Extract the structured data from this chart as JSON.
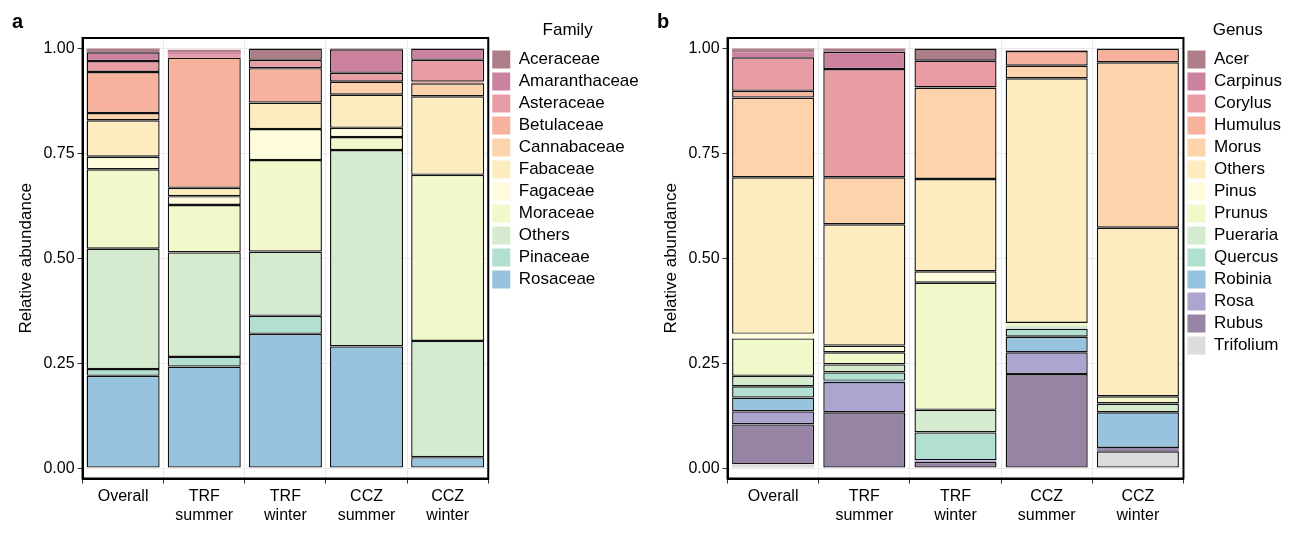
{
  "chart_data": [
    {
      "type": "bar",
      "title": "a",
      "ylabel": "Relative abundance",
      "legend_title": "Family",
      "legend": "right",
      "stacked": true,
      "grid": true,
      "categories": [
        "Overall",
        "TRF summer",
        "TRF winter",
        "CCZ summer",
        "CCZ winter"
      ],
      "ylim": [
        -0.025,
        1.025
      ],
      "yticks": [
        {
          "value": 0,
          "label": "0.00"
        },
        {
          "value": 0.25,
          "label": "0.25"
        },
        {
          "value": 0.5,
          "label": "0.50"
        },
        {
          "value": 0.75,
          "label": "0.75"
        },
        {
          "value": 1,
          "label": "1.00"
        }
      ],
      "series": [
        {
          "name": "Rosaceae",
          "color": "#98c3de",
          "values": [
            0.22,
            0.242,
            0.32,
            0.29,
            0.026
          ]
        },
        {
          "name": "Pinaceae",
          "color": "#b2e0d0",
          "values": [
            0.016,
            0.023,
            0.043,
            0,
            0
          ]
        },
        {
          "name": "Others",
          "color": "#d5ebd0",
          "values": [
            0.287,
            0.249,
            0.153,
            0.468,
            0.277
          ]
        },
        {
          "name": "Moraceae",
          "color": "#f1f8c9",
          "values": [
            0.189,
            0.113,
            0.218,
            0.031,
            0.396
          ]
        },
        {
          "name": "Fagaceae",
          "color": "#fefcdc",
          "values": [
            0.03,
            0.021,
            0.074,
            0.022,
            0
          ]
        },
        {
          "name": "Fabaceae",
          "color": "#fdecc0",
          "values": [
            0.087,
            0.02,
            0.063,
            0.079,
            0.187
          ]
        },
        {
          "name": "Cannabaceae",
          "color": "#fdd3ab",
          "values": [
            0.017,
            null,
            0,
            0.031,
            0.031
          ]
        },
        {
          "name": "Betulaceae",
          "color": "#f7b29e",
          "values": [
            0.098,
            0.31,
            0.082,
            0,
            0.004
          ]
        },
        {
          "name": "Asteraceae",
          "color": "#e89da5",
          "values": [
            0.026,
            0.007,
            0.02,
            0.021,
            0.052
          ]
        },
        {
          "name": "Amaranthaceae",
          "color": "#cc829f",
          "values": [
            0.021,
            0.006,
            0,
            0.056,
            0.027
          ]
        },
        {
          "name": "Aceraceae",
          "color": "#ae7e88",
          "values": [
            0.009,
            0.006,
            0.027,
            0.002,
            0
          ]
        }
      ]
    },
    {
      "type": "bar",
      "title": "b",
      "ylabel": "Relative abundance",
      "legend_title": "Genus",
      "legend": "right",
      "stacked": true,
      "grid": true,
      "categories": [
        "Overall",
        "TRF summer",
        "TRF winter",
        "CCZ summer",
        "CCZ winter"
      ],
      "ylim": [
        -0.025,
        1.025
      ],
      "yticks": [
        {
          "value": 0,
          "label": "0.00"
        },
        {
          "value": 0.25,
          "label": "0.25"
        },
        {
          "value": 0.5,
          "label": "0.50"
        },
        {
          "value": 0.75,
          "label": "0.75"
        },
        {
          "value": 1,
          "label": "1.00"
        }
      ],
      "series": [
        {
          "name": "Trifolium",
          "color": "#dcdcdc",
          "values": [
            0.009,
            0,
            0,
            0,
            0.04
          ]
        },
        {
          "name": "Rubus",
          "color": "#9783a3",
          "values": [
            0.095,
            0.133,
            0.015,
            0.224,
            0.008
          ]
        },
        {
          "name": "Rosa",
          "color": "#ada4d0",
          "values": [
            0.031,
            0.072,
            0.004,
            0.052,
            0
          ]
        },
        {
          "name": "Robinia",
          "color": "#98c3de",
          "values": [
            0.033,
            0.003,
            0,
            0.037,
            0.085
          ]
        },
        {
          "name": "Quercus",
          "color": "#b2e0d0",
          "values": [
            0.027,
            0.02,
            0.066,
            0.019,
            0
          ]
        },
        {
          "name": "Pueraria",
          "color": "#d5ebd0",
          "values": [
            0.025,
            0.019,
            0.054,
            0.008,
            0.021
          ]
        },
        {
          "name": "Prunus",
          "color": "#f1f8c9",
          "values": [
            0.089,
            0.029,
            0.303,
            0.006,
            0.017
          ]
        },
        {
          "name": "Pinus",
          "color": "#fefcdc",
          "values": [
            0.011,
            0.016,
            0.027,
            null,
            0
          ]
        },
        {
          "name": "Others",
          "color": "#fdecc0",
          "values": [
            0.373,
            0.289,
            0.22,
            0.583,
            0.402
          ]
        },
        {
          "name": "Morus",
          "color": "#fdd3ab",
          "values": [
            0.19,
            0.112,
            0.218,
            0.03,
            0.394
          ]
        },
        {
          "name": "Humulus",
          "color": "#f7b29e",
          "values": [
            0.016,
            0,
            0,
            0.035,
            0.033
          ]
        },
        {
          "name": "Corylus",
          "color": "#e89da5",
          "values": [
            0.08,
            0.258,
            0.064,
            0,
            0
          ]
        },
        {
          "name": "Carpinus",
          "color": "#cc829f",
          "values": [
            0.012,
            0.041,
            0,
            0,
            0
          ]
        },
        {
          "name": "Acer",
          "color": "#ae7e88",
          "values": [
            0.009,
            0.008,
            0.029,
            0.002,
            0
          ]
        }
      ]
    }
  ]
}
